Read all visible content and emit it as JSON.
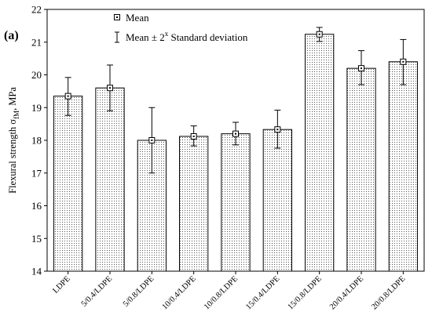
{
  "panel_label": "(a)",
  "legend": {
    "mean_label": "Mean",
    "sd_prefix": "Mean ±  2",
    "sd_superscript": "x",
    "sd_suffix": " Standard deviation"
  },
  "ylabel_parts": {
    "main": "Flexural strength σ",
    "subscript": "fM",
    "unit": ", MPa"
  },
  "chart_data": {
    "type": "bar",
    "title": "",
    "xlabel": "",
    "ylabel": "Flexural strength σfM, MPa",
    "ylim": [
      14,
      22
    ],
    "yticks": [
      14,
      15,
      16,
      17,
      18,
      19,
      20,
      21,
      22
    ],
    "grid": false,
    "bar_fill": "dotted",
    "categories": [
      "LDPE",
      "5/0.4/LDPE",
      "5/0.8/LDPE",
      "10/0.4/LDPE",
      "10/0.8/LDPE",
      "15/0.4/LDPE",
      "15/0.8/LDPE",
      "20/0.4/LDPE",
      "20/0.8/LDPE"
    ],
    "series": [
      {
        "values": [
          19.35,
          19.6,
          18.0,
          18.12,
          18.2,
          18.33,
          21.24,
          20.2,
          20.4
        ],
        "lower": [
          18.76,
          18.9,
          17.0,
          17.83,
          17.86,
          17.76,
          21.02,
          19.7,
          19.7
        ],
        "upper": [
          19.92,
          20.3,
          19.0,
          18.44,
          18.55,
          18.92,
          21.45,
          20.74,
          21.08
        ]
      }
    ]
  }
}
